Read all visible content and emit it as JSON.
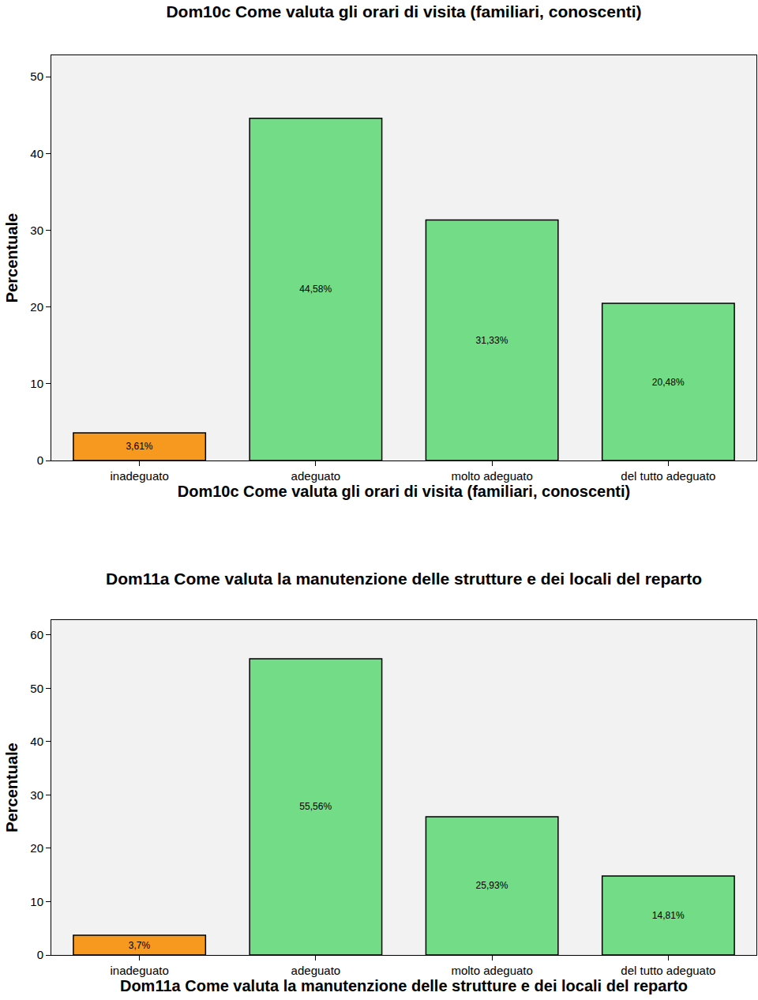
{
  "chart_data": [
    {
      "type": "bar",
      "title": "Dom10c Come valuta gli orari di visita (familiari, conoscenti)",
      "x_label": "Dom10c Come valuta gli orari di visita (familiari, conoscenti)",
      "y_label": "Percentuale",
      "categories": [
        "inadeguato",
        "adeguato",
        "molto adeguato",
        "del tutto adeguato"
      ],
      "values": [
        3.61,
        44.58,
        31.33,
        20.48
      ],
      "value_labels": [
        "3,61%",
        "44,58%",
        "31,33%",
        "20,48%"
      ],
      "colors": [
        "#f7991f",
        "#72dd86",
        "#72dd86",
        "#72dd86"
      ],
      "ylim": [
        0,
        52.8
      ],
      "yticks": [
        0,
        10,
        20,
        30,
        40,
        50
      ],
      "grid": false,
      "data_labels": true
    },
    {
      "type": "bar",
      "title": "Dom11a Come valuta la manutenzione delle strutture e dei locali del reparto",
      "x_label": "Dom11a Come valuta la manutenzione delle strutture e dei locali del reparto",
      "y_label": "Percentuale",
      "categories": [
        "inadeguato",
        "adeguato",
        "molto adeguato",
        "del tutto adeguato"
      ],
      "values": [
        3.7,
        55.56,
        25.93,
        14.81
      ],
      "value_labels": [
        "3,7%",
        "55,56%",
        "25,93%",
        "14,81%"
      ],
      "colors": [
        "#f7991f",
        "#72dd86",
        "#72dd86",
        "#72dd86"
      ],
      "ylim": [
        0,
        62.8
      ],
      "yticks": [
        0,
        10,
        20,
        30,
        40,
        50,
        60
      ],
      "grid": false,
      "data_labels": true
    }
  ]
}
